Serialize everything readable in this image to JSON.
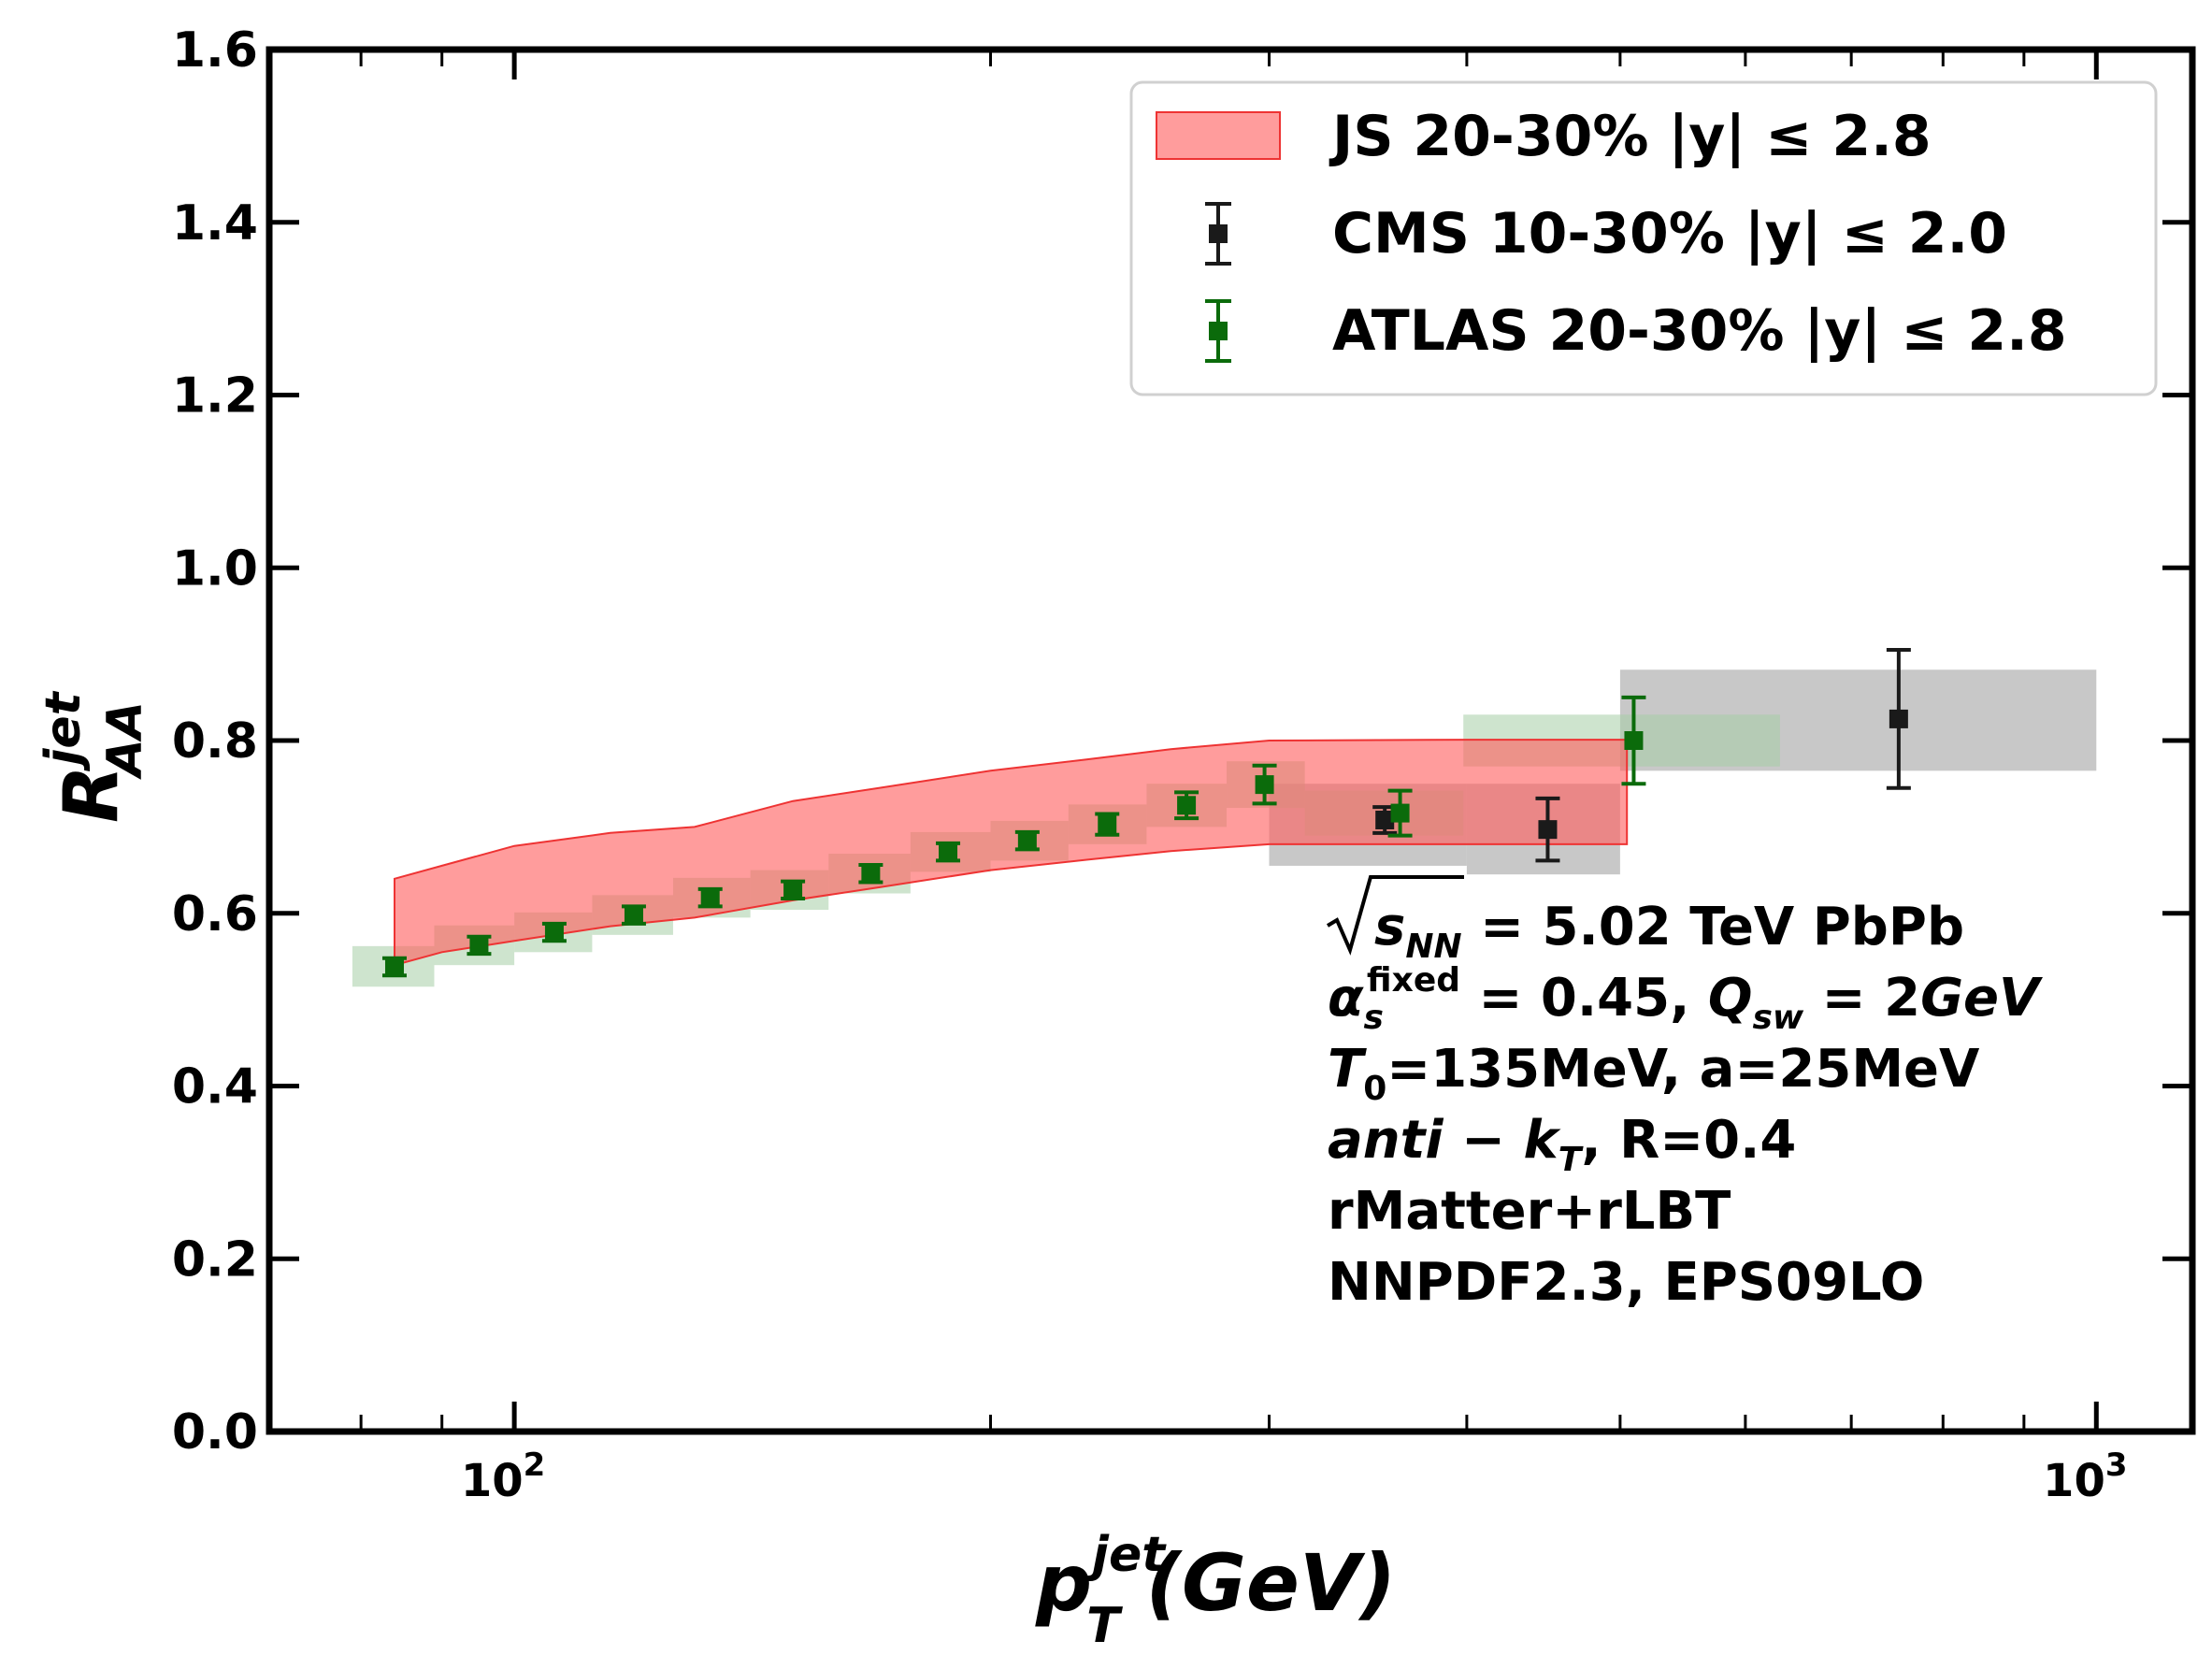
{
  "chart_data": {
    "type": "scatter",
    "title": "",
    "xscale": "log",
    "xlim": [
      70,
      1150
    ],
    "ylim": [
      0.0,
      1.6
    ],
    "yticks": [
      "0.0",
      "0.2",
      "0.4",
      "0.6",
      "0.8",
      "1.0",
      "1.2",
      "1.4",
      "1.6"
    ],
    "xtick_labels": [
      {
        "base": "10",
        "exp": "2",
        "value": 100
      },
      {
        "base": "10",
        "exp": "3",
        "value": 1000
      }
    ],
    "xlabel": {
      "main": "p",
      "sub": "T",
      "sup": "jet",
      "unit": "(GeV)"
    },
    "ylabel": {
      "main": "R",
      "sub": "AA",
      "sup": "jet"
    },
    "model_band": {
      "name": "JS 20-30% |y| ≤ 2.8",
      "color": "#ff6060",
      "x": [
        84,
        90,
        100,
        115,
        130,
        150,
        170,
        200,
        230,
        260,
        300,
        400,
        505
      ],
      "upper": [
        0.64,
        0.655,
        0.678,
        0.693,
        0.7,
        0.73,
        0.745,
        0.765,
        0.778,
        0.79,
        0.8,
        0.801,
        0.801
      ],
      "lower": [
        0.54,
        0.555,
        0.568,
        0.585,
        0.595,
        0.615,
        0.63,
        0.65,
        0.662,
        0.672,
        0.68,
        0.68,
        0.68
      ]
    },
    "series": [
      {
        "name": "CMS 10-30% |y| ≤ 2.0",
        "color": "#1a1a1a",
        "points": [
          {
            "x": 355,
            "y": 0.708,
            "yerr": 0.015,
            "sys_lo": 300,
            "sys_hi": 400,
            "sys_y0": 0.655,
            "sys_y1": 0.75
          },
          {
            "x": 450,
            "y": 0.697,
            "yerr": 0.036,
            "sys_lo": 400,
            "sys_hi": 500,
            "sys_y0": 0.645,
            "sys_y1": 0.75
          },
          {
            "x": 750,
            "y": 0.825,
            "yerr": 0.08,
            "sys_lo": 500,
            "sys_hi": 1000,
            "sys_y0": 0.765,
            "sys_y1": 0.882
          }
        ]
      },
      {
        "name": "ATLAS 20-30% |y| ≤ 2.8",
        "color": "#0b6b0b",
        "points": [
          {
            "x": 84,
            "y": 0.538,
            "yerr": 0.01,
            "sys_lo": 79,
            "sys_hi": 89,
            "sys_y0": 0.515,
            "sys_y1": 0.562
          },
          {
            "x": 95,
            "y": 0.563,
            "yerr": 0.01,
            "sys_lo": 89,
            "sys_hi": 100,
            "sys_y0": 0.54,
            "sys_y1": 0.586
          },
          {
            "x": 106,
            "y": 0.578,
            "yerr": 0.01,
            "sys_lo": 100,
            "sys_hi": 112,
            "sys_y0": 0.555,
            "sys_y1": 0.601
          },
          {
            "x": 119,
            "y": 0.598,
            "yerr": 0.01,
            "sys_lo": 112,
            "sys_hi": 126,
            "sys_y0": 0.575,
            "sys_y1": 0.621
          },
          {
            "x": 133,
            "y": 0.618,
            "yerr": 0.01,
            "sys_lo": 126,
            "sys_hi": 141,
            "sys_y0": 0.595,
            "sys_y1": 0.641
          },
          {
            "x": 150,
            "y": 0.627,
            "yerr": 0.01,
            "sys_lo": 141,
            "sys_hi": 158,
            "sys_y0": 0.604,
            "sys_y1": 0.65
          },
          {
            "x": 168,
            "y": 0.646,
            "yerr": 0.01,
            "sys_lo": 158,
            "sys_hi": 178,
            "sys_y0": 0.623,
            "sys_y1": 0.669
          },
          {
            "x": 188,
            "y": 0.671,
            "yerr": 0.01,
            "sys_lo": 178,
            "sys_hi": 200,
            "sys_y0": 0.648,
            "sys_y1": 0.694
          },
          {
            "x": 211,
            "y": 0.684,
            "yerr": 0.01,
            "sys_lo": 200,
            "sys_hi": 224,
            "sys_y0": 0.661,
            "sys_y1": 0.707
          },
          {
            "x": 237,
            "y": 0.703,
            "yerr": 0.012,
            "sys_lo": 224,
            "sys_hi": 251,
            "sys_y0": 0.68,
            "sys_y1": 0.726
          },
          {
            "x": 266,
            "y": 0.725,
            "yerr": 0.015,
            "sys_lo": 251,
            "sys_hi": 282,
            "sys_y0": 0.7,
            "sys_y1": 0.75
          },
          {
            "x": 298,
            "y": 0.749,
            "yerr": 0.022,
            "sys_lo": 282,
            "sys_hi": 316,
            "sys_y0": 0.722,
            "sys_y1": 0.776
          },
          {
            "x": 363,
            "y": 0.716,
            "yerr": 0.026,
            "sys_lo": 316,
            "sys_hi": 398,
            "sys_y0": 0.69,
            "sys_y1": 0.742
          },
          {
            "x": 510,
            "y": 0.8,
            "yerr": 0.05,
            "sys_lo": 398,
            "sys_hi": 631,
            "sys_y0": 0.77,
            "sys_y1": 0.83
          }
        ]
      }
    ],
    "legend_position": "top-right",
    "legend": [
      {
        "label": "JS 20-30% |y| ≤ 2.8",
        "kind": "band"
      },
      {
        "label": "CMS 10-30% |y| ≤ 2.0",
        "kind": "errbar"
      },
      {
        "label": "ATLAS 20-30% |y| ≤ 2.8",
        "kind": "errbar"
      }
    ],
    "annotations": [
      {
        "id": "sqrt-s",
        "segments": [
          {
            "t": "s",
            "i": true
          },
          {
            "t": "NN",
            "i": true,
            "sub": true
          },
          {
            "t": " = 5.02 TeV PbPb"
          }
        ]
      },
      {
        "id": "alpha",
        "segments": [
          {
            "t": "α",
            "i": true
          },
          {
            "t": "s",
            "i": true,
            "sub": true
          },
          {
            "t": "fixed",
            "sup": true
          },
          {
            "t": " = 0.45, "
          },
          {
            "t": "Q",
            "i": true
          },
          {
            "t": "sw",
            "i": true,
            "sub": true
          },
          {
            "t": " = 2"
          },
          {
            "t": "GeV",
            "i": true
          }
        ]
      },
      {
        "id": "t0",
        "segments": [
          {
            "t": "T",
            "i": true
          },
          {
            "t": "0",
            "sub": true
          },
          {
            "t": "=135MeV, a=25MeV"
          }
        ]
      },
      {
        "id": "algo",
        "segments": [
          {
            "t": "anti − k",
            "i": true
          },
          {
            "t": "T",
            "i": true,
            "sub": true
          },
          {
            "t": ", R=0.4"
          }
        ]
      },
      {
        "id": "model",
        "segments": [
          {
            "t": "rMatter+rLBT"
          }
        ]
      },
      {
        "id": "pdf",
        "segments": [
          {
            "t": "NNPDF2.3, EPS09LO"
          }
        ]
      }
    ]
  }
}
